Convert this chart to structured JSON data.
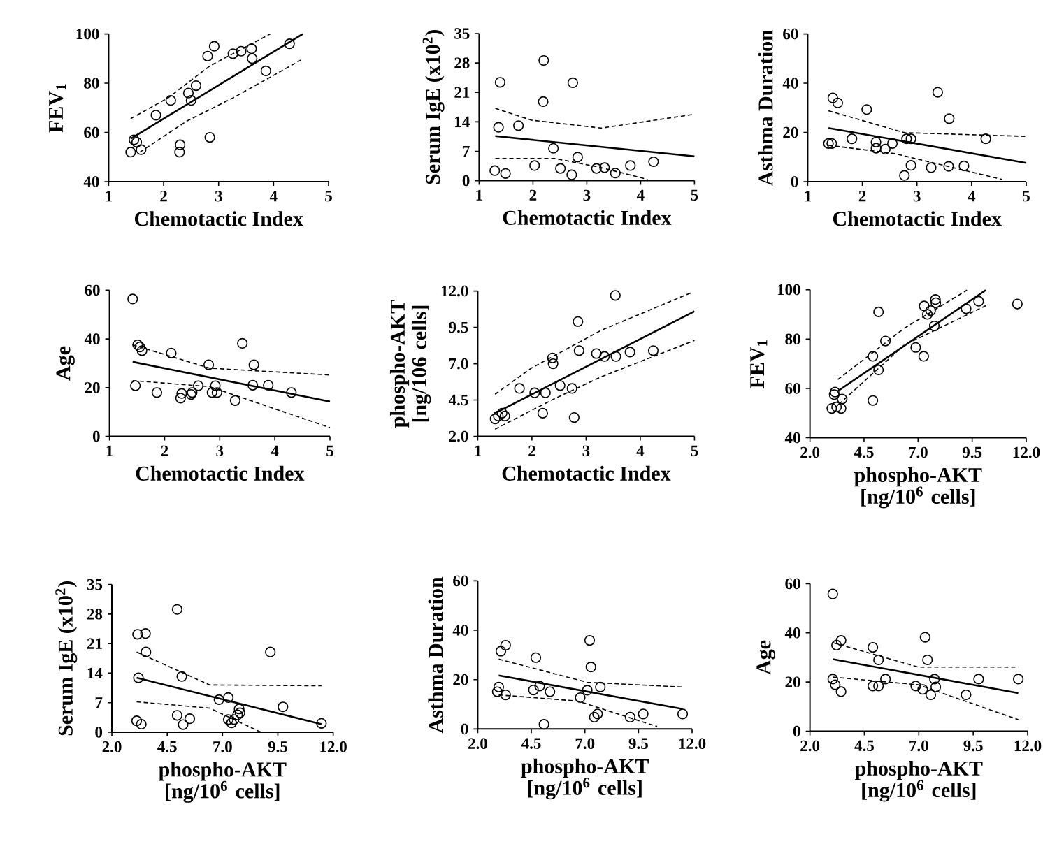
{
  "chart_data": [
    {
      "type": "scatter",
      "xlabel": "Chemotactic Index",
      "ylabel": "FEV$_{1}$",
      "xlim": [
        1,
        5
      ],
      "ylim": [
        40,
        100
      ],
      "xticks": [
        1,
        2,
        3,
        4,
        5
      ],
      "yticks": [
        40,
        60,
        80,
        100
      ],
      "series": [
        {
          "type": "scatter",
          "marker": "circle",
          "color": "#000000",
          "x": [
            1.4,
            1.46,
            1.51,
            1.59,
            1.86,
            2.13,
            2.3,
            2.29,
            2.45,
            2.5,
            2.59,
            2.8,
            2.92,
            2.84,
            3.26,
            3.41,
            3.6,
            3.61,
            3.86,
            4.29
          ],
          "values": [
            52,
            57,
            56,
            53,
            67,
            73,
            55,
            52,
            76,
            73,
            79,
            91,
            95,
            58,
            92,
            93,
            94,
            90,
            85,
            96
          ]
        },
        {
          "type": "line",
          "color": "#000000",
          "line_style": "solid",
          "x": [
            1.4,
            4.53
          ],
          "values": [
            57.4,
            100
          ]
        },
        {
          "type": "line",
          "color": "#000000",
          "line_style": "dashed",
          "x": [
            1.4,
            2.08,
            2.84,
            3.94
          ],
          "values": [
            65.6,
            74,
            87,
            100
          ]
        },
        {
          "type": "line",
          "color": "#000000",
          "line_style": "dashed",
          "x": [
            1.57,
            2.42,
            3.26,
            4.53
          ],
          "values": [
            52,
            64.6,
            74,
            89.8
          ]
        }
      ]
    },
    {
      "type": "scatter",
      "xlabel": "Chemotactic Index",
      "ylabel": "Serum IgE (x10$^{2}$)",
      "xlim": [
        1,
        5
      ],
      "ylim": [
        0,
        35
      ],
      "xticks": [
        1,
        2,
        3,
        4,
        5
      ],
      "yticks": [
        0,
        7,
        14,
        21,
        28,
        35
      ],
      "series": [
        {
          "type": "scatter",
          "marker": "circle",
          "color": "#000000",
          "x": [
            1.29,
            1.39,
            1.36,
            1.49,
            1.73,
            2.03,
            2.2,
            2.19,
            2.38,
            2.74,
            2.51,
            2.72,
            2.83,
            3.18,
            3.33,
            3.53,
            3.81,
            4.24
          ],
          "values": [
            2.4,
            23.4,
            12.7,
            1.7,
            13.1,
            3.6,
            28.6,
            18.8,
            7.7,
            23.3,
            2.9,
            1.4,
            5.6,
            2.9,
            3.1,
            1.8,
            3.6,
            4.5
          ]
        },
        {
          "type": "line",
          "color": "#000000",
          "line_style": "solid",
          "x": [
            1.3,
            5
          ],
          "values": [
            10.6,
            5.8
          ]
        },
        {
          "type": "line",
          "color": "#000000",
          "line_style": "dashed",
          "x": [
            1.3,
            1.97,
            3.27,
            5
          ],
          "values": [
            17.2,
            14.4,
            12.5,
            15.8
          ]
        },
        {
          "type": "line",
          "color": "#000000",
          "line_style": "dashed",
          "x": [
            1.3,
            2.4,
            3.27,
            4.13
          ],
          "values": [
            5.3,
            5.3,
            3.1,
            0.3
          ]
        }
      ]
    },
    {
      "type": "scatter",
      "xlabel": "Chemotactic Index",
      "ylabel": "Asthma Duration",
      "xlim": [
        1,
        5
      ],
      "ylim": [
        0,
        60
      ],
      "xticks": [
        1,
        2,
        3,
        4,
        5
      ],
      "yticks": [
        0,
        20,
        40,
        60
      ],
      "series": [
        {
          "type": "scatter",
          "marker": "circle",
          "color": "#000000",
          "x": [
            1.46,
            1.55,
            1.38,
            1.44,
            1.81,
            2.08,
            2.25,
            2.25,
            2.42,
            2.55,
            2.81,
            2.89,
            2.89,
            2.77,
            3.26,
            3.38,
            3.59,
            3.58,
            3.86,
            4.26
          ],
          "values": [
            34,
            32,
            15.5,
            15.5,
            17.4,
            29.3,
            16.1,
            13.6,
            13.2,
            15.5,
            17.4,
            17.4,
            6.6,
            2.5,
            5.7,
            36.3,
            25.6,
            6.2,
            6.4,
            17.4
          ]
        },
        {
          "type": "line",
          "color": "#000000",
          "line_style": "solid",
          "x": [
            1.38,
            5
          ],
          "values": [
            21.8,
            7.6
          ]
        },
        {
          "type": "line",
          "color": "#000000",
          "line_style": "dashed",
          "x": [
            1.38,
            2.77,
            4.98
          ],
          "values": [
            28.8,
            19.9,
            18.4
          ]
        },
        {
          "type": "line",
          "color": "#000000",
          "line_style": "dashed",
          "x": [
            1.38,
            2.59,
            4.56
          ],
          "values": [
            14.8,
            11.4,
            0.9
          ]
        }
      ]
    },
    {
      "type": "scatter",
      "xlabel": "Chemotactic Index",
      "ylabel": "Age",
      "xlim": [
        1,
        5
      ],
      "ylim": [
        0,
        60
      ],
      "xticks": [
        1,
        2,
        3,
        4,
        5
      ],
      "yticks": [
        0,
        20,
        40,
        60
      ],
      "series": [
        {
          "type": "scatter",
          "marker": "circle",
          "color": "#000000",
          "x": [
            1.42,
            1.47,
            1.51,
            1.55,
            1.59,
            1.86,
            2.12,
            2.29,
            2.31,
            2.48,
            2.5,
            2.61,
            2.8,
            2.86,
            2.92,
            2.95,
            3.28,
            3.41,
            3.62,
            3.6,
            3.88,
            4.3
          ],
          "values": [
            56.4,
            20.8,
            37.6,
            36.7,
            35.2,
            18,
            34.2,
            15.7,
            17.6,
            17.2,
            18,
            20.8,
            29.4,
            18,
            20.8,
            18,
            14.7,
            38.2,
            29.4,
            21,
            21,
            18
          ]
        },
        {
          "type": "line",
          "color": "#000000",
          "line_style": "solid",
          "x": [
            1.42,
            5
          ],
          "values": [
            30.6,
            14.3
          ]
        },
        {
          "type": "line",
          "color": "#000000",
          "line_style": "dashed",
          "x": [
            1.42,
            2.82,
            5
          ],
          "values": [
            37.6,
            28,
            25.2
          ]
        },
        {
          "type": "line",
          "color": "#000000",
          "line_style": "dashed",
          "x": [
            1.42,
            2.82,
            5
          ],
          "values": [
            22.9,
            20.4,
            3.6
          ]
        }
      ]
    },
    {
      "type": "scatter",
      "xlabel": "Chemotactic Index",
      "ylabel": "phospho-AKT [ng/106 cells]",
      "xlim": [
        1,
        5
      ],
      "ylim": [
        2,
        12
      ],
      "xticks": [
        1,
        2,
        3,
        4,
        5
      ],
      "yticks": [
        {
          "value": 2,
          "label": "2.0"
        },
        {
          "value": 4.5,
          "label": "4.5"
        },
        {
          "value": 7,
          "label": "7.0"
        },
        {
          "value": 9.5,
          "label": "9.5"
        },
        {
          "value": 12,
          "label": "12.0"
        }
      ],
      "series": [
        {
          "type": "scatter",
          "marker": "circle",
          "color": "#000000",
          "x": [
            1.32,
            1.38,
            1.45,
            1.5,
            1.77,
            2.05,
            2.2,
            2.25,
            2.38,
            2.39,
            2.52,
            2.74,
            2.78,
            2.85,
            2.87,
            3.19,
            3.34,
            3.54,
            3.55,
            3.81,
            4.24
          ],
          "values": [
            3.2,
            3.4,
            3.6,
            3.4,
            5.3,
            5.0,
            3.6,
            5.0,
            7.4,
            7.0,
            5.5,
            5.3,
            3.3,
            9.9,
            7.9,
            7.7,
            7.5,
            11.7,
            7.5,
            7.8,
            7.9
          ]
        },
        {
          "type": "line",
          "color": "#000000",
          "line_style": "solid",
          "x": [
            1.32,
            5
          ],
          "values": [
            3.6,
            10.6
          ]
        },
        {
          "type": "line",
          "color": "#000000",
          "line_style": "dashed",
          "x": [
            1.32,
            1.99,
            3.28,
            4.95
          ],
          "values": [
            4.9,
            6.7,
            9.3,
            11.9
          ]
        },
        {
          "type": "line",
          "color": "#000000",
          "line_style": "dashed",
          "x": [
            1.32,
            2.42,
            3.28,
            5
          ],
          "values": [
            2.5,
            4.6,
            6.1,
            8.6
          ]
        }
      ]
    },
    {
      "type": "scatter",
      "xlabel": "phospho-AKT [ng/10$^{6}$ cells]",
      "ylabel": "FEV$_{1}$",
      "xlim": [
        2,
        12
      ],
      "ylim": [
        40,
        100
      ],
      "xticks": [
        {
          "value": 2,
          "label": "2.0"
        },
        {
          "value": 4.5,
          "label": "4.5"
        },
        {
          "value": 7,
          "label": "7.0"
        },
        {
          "value": 9.5,
          "label": "9.5"
        },
        {
          "value": 12,
          "label": "12.0"
        }
      ],
      "yticks": [
        40,
        60,
        80,
        100
      ],
      "series": [
        {
          "type": "scatter",
          "marker": "circle",
          "color": "#000000",
          "x": [
            3.01,
            3.12,
            3.16,
            3.23,
            3.44,
            3.49,
            4.91,
            4.91,
            5.17,
            5.17,
            5.49,
            6.89,
            7.26,
            7.28,
            7.43,
            7.58,
            7.75,
            7.8,
            7.82,
            9.22,
            9.8,
            11.59
          ],
          "values": [
            51.9,
            57.5,
            58.5,
            52.5,
            51.9,
            55.7,
            55.1,
            73,
            91,
            67.5,
            79.2,
            76.6,
            73,
            93.4,
            90,
            91.5,
            85.3,
            96,
            94.7,
            92.3,
            95.3,
            94.2
          ]
        },
        {
          "type": "line",
          "color": "#000000",
          "line_style": "solid",
          "x": [
            3.29,
            10.13
          ],
          "values": [
            58.9,
            99.8
          ]
        },
        {
          "type": "line",
          "color": "#000000",
          "line_style": "dashed",
          "x": [
            3.29,
            6.35,
            9.26
          ],
          "values": [
            63.6,
            84.3,
            99.8
          ]
        },
        {
          "type": "line",
          "color": "#000000",
          "line_style": "dashed",
          "x": [
            3.34,
            6.35,
            10.13
          ],
          "values": [
            53.6,
            77.5,
            93.5
          ]
        }
      ]
    },
    {
      "type": "scatter",
      "xlabel": "phospho-AKT [ng/10$^{6}$ cells]",
      "ylabel": "Serum IgE (x10$^{2}$)",
      "xlim": [
        2,
        12
      ],
      "ylim": [
        0,
        35
      ],
      "xticks": [
        {
          "value": 2,
          "label": "2.0"
        },
        {
          "value": 4.5,
          "label": "4.5"
        },
        {
          "value": 7,
          "label": "7.0"
        },
        {
          "value": 9.5,
          "label": "9.5"
        },
        {
          "value": 12,
          "label": "12.0"
        }
      ],
      "yticks": [
        0,
        7,
        14,
        21,
        28,
        35
      ],
      "series": [
        {
          "type": "scatter",
          "marker": "circle",
          "color": "#000000",
          "x": [
            3.12,
            3.33,
            3.16,
            3.52,
            3.54,
            3.2,
            4.95,
            4.95,
            5.22,
            5.16,
            5.52,
            6.84,
            7.26,
            7.26,
            7.41,
            7.52,
            7.68,
            7.75,
            7.79,
            9.16,
            9.73,
            11.47
          ],
          "values": [
            2.7,
            1.9,
            23.2,
            23.4,
            19.0,
            12.9,
            29.1,
            4.0,
            1.8,
            13.2,
            3.2,
            7.7,
            8.2,
            3.0,
            2.2,
            3.0,
            4.1,
            5.5,
            4.6,
            19.0,
            6.0,
            2.1
          ]
        },
        {
          "type": "line",
          "color": "#000000",
          "line_style": "solid",
          "x": [
            3.12,
            11.47
          ],
          "values": [
            12.9,
            1.9
          ]
        },
        {
          "type": "line",
          "color": "#000000",
          "line_style": "dashed",
          "x": [
            3.12,
            6.42,
            11.47
          ],
          "values": [
            19.0,
            11.2,
            11.0
          ]
        },
        {
          "type": "line",
          "color": "#000000",
          "line_style": "dashed",
          "x": [
            3.12,
            6.42,
            8.74
          ],
          "values": [
            7.2,
            5.7,
            0
          ]
        }
      ]
    },
    {
      "type": "scatter",
      "xlabel": "phospho-AKT [ng/10$^{6}$ cells]",
      "ylabel": "Asthma Duration",
      "xlim": [
        2,
        12
      ],
      "ylim": [
        0,
        60
      ],
      "xticks": [
        {
          "value": 2,
          "label": "2.0"
        },
        {
          "value": 4.5,
          "label": "4.5"
        },
        {
          "value": 7,
          "label": "7.0"
        },
        {
          "value": 9.5,
          "label": "9.5"
        },
        {
          "value": 12,
          "label": "12.0"
        }
      ],
      "yticks": [
        0,
        20,
        40,
        60
      ],
      "series": [
        {
          "type": "scatter",
          "marker": "circle",
          "color": "#000000",
          "x": [
            2.91,
            2.98,
            3.08,
            3.3,
            3.3,
            4.71,
            4.6,
            4.89,
            5.37,
            5.09,
            6.78,
            7.11,
            7.22,
            7.28,
            7.72,
            7.44,
            7.59,
            9.11,
            9.72,
            11.56
          ],
          "values": [
            15.1,
            17.0,
            31.5,
            33.9,
            13.8,
            28.9,
            15.8,
            17.4,
            15.1,
            1.9,
            12.7,
            15.7,
            35.9,
            25.1,
            17.0,
            4.8,
            6.1,
            4.8,
            6.1,
            6.1
          ]
        },
        {
          "type": "line",
          "color": "#000000",
          "line_style": "solid",
          "x": [
            2.98,
            11.56
          ],
          "values": [
            21.7,
            8.1
          ]
        },
        {
          "type": "line",
          "color": "#000000",
          "line_style": "dashed",
          "x": [
            2.98,
            7.11,
            11.56
          ],
          "values": [
            28.3,
            18.9,
            17.0
          ]
        },
        {
          "type": "line",
          "color": "#000000",
          "line_style": "dashed",
          "x": [
            2.98,
            6.67,
            10.37
          ],
          "values": [
            13.8,
            11.3,
            1.0
          ]
        }
      ]
    },
    {
      "type": "scatter",
      "xlabel": "phospho-AKT [ng/10$^{6}$ cells]",
      "ylabel": "Age",
      "xlim": [
        2,
        12
      ],
      "ylim": [
        0,
        60
      ],
      "xticks": [
        {
          "value": 2,
          "label": "2.0"
        },
        {
          "value": 4.5,
          "label": "4.5"
        },
        {
          "value": 7,
          "label": "7.0"
        },
        {
          "value": 9.5,
          "label": "9.5"
        },
        {
          "value": 12,
          "label": "12.0"
        }
      ],
      "yticks": [
        0,
        20,
        40,
        60
      ],
      "series": [
        {
          "type": "scatter",
          "marker": "circle",
          "color": "#000000",
          "x": [
            3.05,
            3.05,
            3.16,
            3.22,
            3.43,
            3.43,
            4.89,
            4.89,
            5.15,
            5.15,
            5.47,
            6.86,
            7.18,
            7.29,
            7.4,
            7.55,
            7.72,
            7.78,
            9.17,
            9.75,
            11.57
          ],
          "values": [
            55.8,
            21.2,
            18.9,
            35.0,
            36.9,
            16.1,
            34.1,
            18.4,
            18.4,
            29.0,
            21.2,
            18.4,
            17.0,
            38.2,
            29.0,
            14.8,
            21.2,
            18.0,
            14.8,
            21.2,
            21.2
          ]
        },
        {
          "type": "line",
          "color": "#000000",
          "line_style": "solid",
          "x": [
            3.05,
            11.57
          ],
          "values": [
            29.3,
            15.5
          ]
        },
        {
          "type": "line",
          "color": "#000000",
          "line_style": "dashed",
          "x": [
            3.05,
            6.97,
            11.57
          ],
          "values": [
            36.0,
            26.1,
            26.1
          ]
        },
        {
          "type": "line",
          "color": "#000000",
          "line_style": "dashed",
          "x": [
            3.05,
            6.97,
            11.57
          ],
          "values": [
            22.0,
            18.9,
            4.7
          ]
        }
      ]
    }
  ]
}
